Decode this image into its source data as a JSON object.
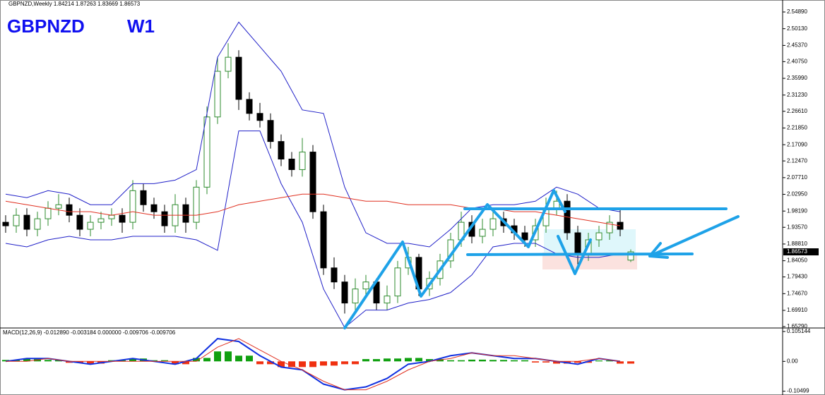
{
  "header": "GBPNZD,Weekly  1.84214 1.87263 1.83669 1.86573",
  "symbol": "GBPNZD",
  "timeframe": "W1",
  "chart_data": [
    {
      "type": "candlestick",
      "up_color": "#2e8b2e",
      "down_color": "#000000",
      "open": [
        1.95,
        1.94,
        1.97,
        1.93,
        1.96,
        1.99,
        2.0,
        1.97,
        1.93,
        1.95,
        1.96,
        1.97,
        1.95,
        2.04,
        2.0,
        1.98,
        1.94,
        2.0,
        1.95,
        2.05,
        2.25,
        2.38,
        2.42,
        2.3,
        2.26,
        2.24,
        2.18,
        2.13,
        2.1,
        2.15,
        1.98,
        1.82,
        1.78,
        1.72,
        1.76,
        1.78,
        1.72,
        1.74,
        1.82,
        1.85,
        1.76,
        1.79,
        1.84,
        1.9,
        1.95,
        1.91,
        1.93,
        1.96,
        1.94,
        1.92,
        1.9,
        1.94,
        1.99,
        2.01,
        1.92,
        1.86,
        1.9,
        1.92,
        1.95,
        1.84214
      ],
      "high": [
        1.97,
        1.99,
        1.99,
        1.98,
        2.01,
        2.03,
        2.02,
        1.99,
        1.97,
        1.98,
        1.99,
        1.99,
        2.07,
        2.06,
        2.02,
        2.0,
        2.03,
        2.02,
        2.07,
        2.28,
        2.42,
        2.46,
        2.44,
        2.32,
        2.29,
        2.26,
        2.2,
        2.15,
        2.19,
        2.17,
        2.0,
        1.85,
        1.8,
        1.79,
        1.8,
        1.79,
        1.77,
        1.84,
        1.88,
        1.86,
        1.81,
        1.86,
        1.92,
        1.98,
        1.97,
        1.96,
        1.98,
        1.98,
        1.96,
        1.94,
        1.96,
        2.02,
        2.04,
        2.03,
        1.94,
        1.92,
        1.94,
        1.97,
        1.99,
        1.87263
      ],
      "low": [
        1.92,
        1.92,
        1.91,
        1.91,
        1.94,
        1.97,
        1.95,
        1.91,
        1.91,
        1.93,
        1.94,
        1.92,
        1.93,
        1.98,
        1.96,
        1.92,
        1.92,
        1.92,
        1.93,
        2.03,
        2.23,
        2.36,
        2.27,
        2.24,
        2.22,
        2.16,
        2.11,
        2.08,
        2.08,
        1.96,
        1.8,
        1.76,
        1.69,
        1.7,
        1.74,
        1.7,
        1.7,
        1.72,
        1.8,
        1.74,
        1.74,
        1.77,
        1.82,
        1.88,
        1.89,
        1.89,
        1.91,
        1.92,
        1.9,
        1.88,
        1.88,
        1.92,
        1.97,
        1.9,
        1.83,
        1.84,
        1.88,
        1.9,
        1.91,
        1.83669
      ],
      "close": [
        1.94,
        1.97,
        1.93,
        1.96,
        1.99,
        2.0,
        1.97,
        1.93,
        1.95,
        1.96,
        1.97,
        1.95,
        2.04,
        2.0,
        1.98,
        1.94,
        2.0,
        1.95,
        2.05,
        2.25,
        2.38,
        2.42,
        2.3,
        2.26,
        2.24,
        2.18,
        2.13,
        2.1,
        2.15,
        1.98,
        1.82,
        1.78,
        1.72,
        1.76,
        1.78,
        1.72,
        1.74,
        1.82,
        1.85,
        1.76,
        1.79,
        1.84,
        1.9,
        1.95,
        1.91,
        1.93,
        1.96,
        1.94,
        1.92,
        1.9,
        1.94,
        1.99,
        2.01,
        1.92,
        1.86,
        1.9,
        1.92,
        1.95,
        1.93,
        1.86573
      ],
      "overlay_x": [
        0,
        2,
        4,
        6,
        8,
        10,
        12,
        14,
        16,
        18,
        20,
        22,
        24,
        26,
        28,
        30,
        32,
        34,
        36,
        38,
        40,
        42,
        44,
        46,
        48,
        50,
        52,
        54,
        56,
        58
      ],
      "overlays": [
        {
          "color": "#2020c8",
          "values": [
            2.03,
            2.02,
            2.04,
            2.03,
            2.0,
            2.0,
            2.06,
            2.06,
            2.07,
            2.1,
            2.42,
            2.52,
            2.45,
            2.38,
            2.27,
            2.26,
            2.05,
            1.92,
            1.89,
            1.89,
            1.88,
            1.93,
            1.99,
            2.0,
            2.0,
            2.01,
            2.05,
            2.03,
            1.99,
            1.98
          ]
        },
        {
          "color": "#2020c8",
          "values": [
            1.89,
            1.88,
            1.9,
            1.91,
            1.9,
            1.9,
            1.91,
            1.91,
            1.91,
            1.9,
            1.87,
            2.21,
            2.21,
            2.06,
            1.95,
            1.76,
            1.65,
            1.7,
            1.7,
            1.72,
            1.73,
            1.75,
            1.8,
            1.88,
            1.89,
            1.89,
            1.86,
            1.85,
            1.85,
            1.86
          ]
        },
        {
          "color": "#e03020",
          "values": [
            2.01,
            2.0,
            1.99,
            1.98,
            1.98,
            1.97,
            1.98,
            1.97,
            1.97,
            1.97,
            1.98,
            2.0,
            2.01,
            2.02,
            2.03,
            2.03,
            2.02,
            2.01,
            2.01,
            2.0,
            2.0,
            2.0,
            1.99,
            1.99,
            1.98,
            1.98,
            1.97,
            1.96,
            1.95,
            1.94
          ]
        }
      ],
      "ylim": [
        1.6489,
        2.579
      ],
      "yticks": [
        {
          "value": 2.5489,
          "label": "2.54890"
        },
        {
          "value": 2.5013,
          "label": "2.50130"
        },
        {
          "value": 2.4537,
          "label": "2.45370"
        },
        {
          "value": 2.4075,
          "label": "2.40750"
        },
        {
          "value": 2.3599,
          "label": "2.35990"
        },
        {
          "value": 2.3123,
          "label": "2.31230"
        },
        {
          "value": 2.2661,
          "label": "2.26610"
        },
        {
          "value": 2.2185,
          "label": "2.21850"
        },
        {
          "value": 2.1709,
          "label": "2.17090"
        },
        {
          "value": 2.1247,
          "label": "2.12470"
        },
        {
          "value": 2.0771,
          "label": "2.07710"
        },
        {
          "value": 2.0295,
          "label": "2.02950"
        },
        {
          "value": 1.9819,
          "label": "1.98190"
        },
        {
          "value": 1.9357,
          "label": "1.93570"
        },
        {
          "value": 1.8881,
          "label": "1.88810"
        },
        {
          "value": 1.8405,
          "label": "1.84050"
        },
        {
          "value": 1.7943,
          "label": "1.79430"
        },
        {
          "value": 1.7467,
          "label": "1.74670"
        },
        {
          "value": 1.6991,
          "label": "1.69910"
        },
        {
          "value": 1.6529,
          "label": "1.65290"
        }
      ]
    },
    {
      "type": "macd",
      "title": "MACD(12,26,9) -0.012890 -0.003184 0.000000 -0.009706 -0.009706",
      "x": [
        0,
        2,
        4,
        6,
        8,
        10,
        12,
        14,
        16,
        18,
        20,
        22,
        24,
        26,
        28,
        30,
        32,
        34,
        36,
        38,
        40,
        42,
        44,
        46,
        48,
        50,
        52,
        54,
        56,
        58
      ],
      "histogram": [
        0.005,
        0.01,
        0.005,
        -0.005,
        -0.008,
        0.004,
        0.01,
        0.004,
        -0.01,
        0.012,
        0.035,
        0.02,
        -0.01,
        -0.02,
        -0.02,
        -0.015,
        -0.01,
        0.008,
        0.01,
        0.012,
        0.008,
        0.004,
        0.006,
        0.005,
        0.004,
        -0.004,
        -0.008,
        -0.005,
        0.003,
        -0.008
      ],
      "positive_color": "#10a010",
      "negative_color": "#f03010",
      "series": [
        {
          "color": "#1030e0",
          "values": [
            0.0,
            0.01,
            0.01,
            0.0,
            -0.01,
            0.0,
            0.01,
            0.0,
            -0.01,
            0.01,
            0.08,
            0.07,
            0.02,
            -0.02,
            -0.03,
            -0.08,
            -0.1,
            -0.09,
            -0.06,
            -0.01,
            0.0,
            0.02,
            0.03,
            0.02,
            0.01,
            0.01,
            0.0,
            -0.01,
            0.01,
            0.0
          ]
        },
        {
          "color": "#e03020",
          "values": [
            0.0,
            0.0,
            0.01,
            0.0,
            0.0,
            0.0,
            0.0,
            0.0,
            0.0,
            0.0,
            0.05,
            0.08,
            0.04,
            0.0,
            -0.03,
            -0.07,
            -0.1,
            -0.1,
            -0.07,
            -0.03,
            0.0,
            0.01,
            0.03,
            0.02,
            0.02,
            0.01,
            0.0,
            0.0,
            0.01,
            0.0
          ]
        }
      ],
      "ylim": [
        -0.1085,
        0.1125
      ],
      "yticks": [
        0.105144,
        {
          "value": 0,
          "label": "0.00"
        },
        -0.10499
      ]
    }
  ]
}
